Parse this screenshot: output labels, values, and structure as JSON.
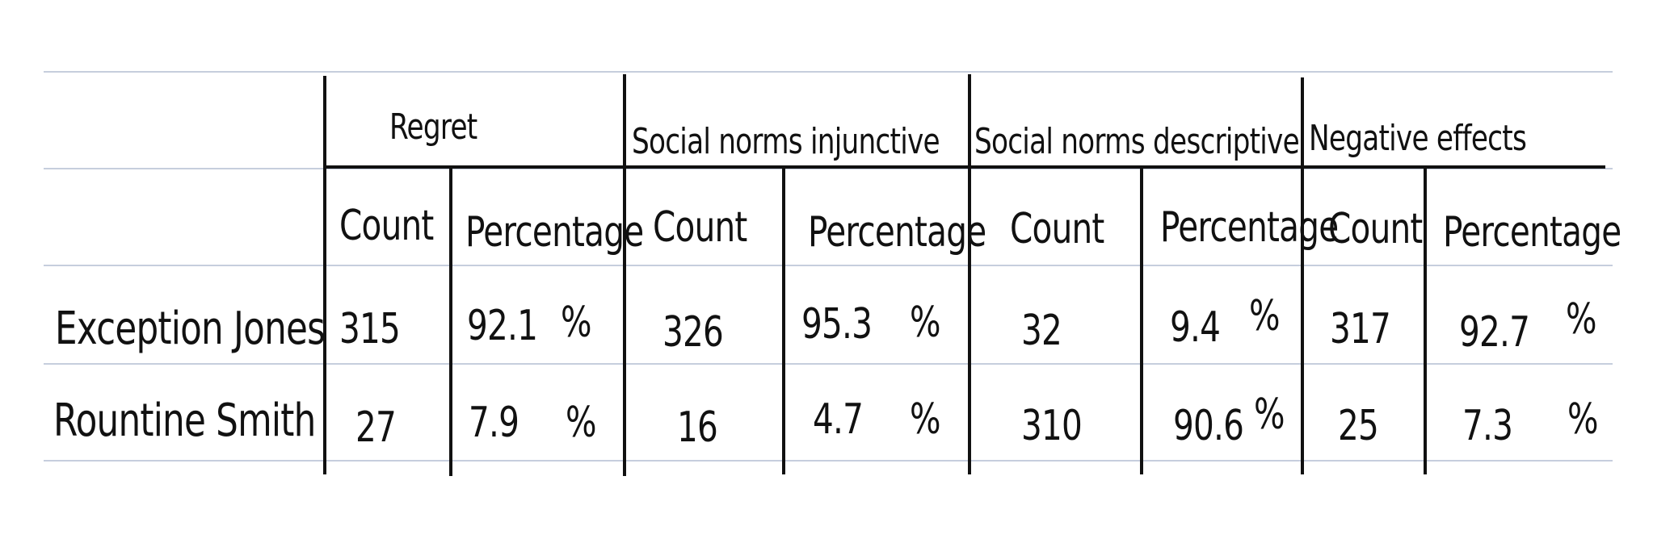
{
  "table": {
    "groups": [
      "Regret",
      "Social norms injunctive",
      "Social norms descriptive",
      "Negative effects"
    ],
    "subheaders": [
      "Count",
      "Percentage"
    ],
    "rows": [
      {
        "label": "Exception Jones",
        "cells": [
          {
            "count": "315",
            "pct": "92.1",
            "unit": "%"
          },
          {
            "count": "326",
            "pct": "95.3",
            "unit": "%"
          },
          {
            "count": "32",
            "pct": "9.4",
            "unit": "%"
          },
          {
            "count": "317",
            "pct": "92.7",
            "unit": "%"
          }
        ]
      },
      {
        "label": "Rountine Smith",
        "cells": [
          {
            "count": "27",
            "pct": "7.9",
            "unit": "%"
          },
          {
            "count": "16",
            "pct": "4.7",
            "unit": "%"
          },
          {
            "count": "310",
            "pct": "90.6",
            "unit": "%"
          },
          {
            "count": "25",
            "pct": "7.3",
            "unit": "%"
          }
        ]
      }
    ]
  }
}
